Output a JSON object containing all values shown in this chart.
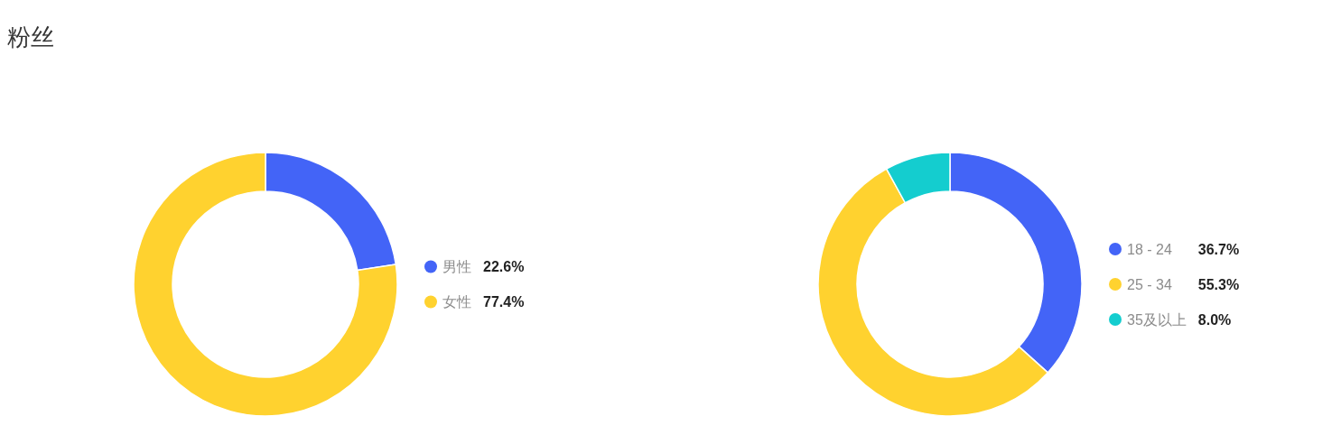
{
  "chart_data": [
    {
      "type": "donut",
      "title": "粉丝",
      "categories": [
        "男性",
        "女性"
      ],
      "values": [
        22.6,
        77.4
      ],
      "value_labels": [
        "22.6%",
        "77.4%"
      ],
      "colors": [
        "#4364f7",
        "#ffd22f"
      ],
      "legend": "right"
    },
    {
      "type": "donut",
      "categories": [
        "18 - 24",
        "25 - 34",
        "35及以上"
      ],
      "values": [
        36.7,
        55.3,
        8.0
      ],
      "value_labels": [
        "36.7%",
        "55.3%",
        "8.0%"
      ],
      "colors": [
        "#4364f7",
        "#ffd22f",
        "#14cdcf"
      ],
      "legend": "right"
    }
  ]
}
